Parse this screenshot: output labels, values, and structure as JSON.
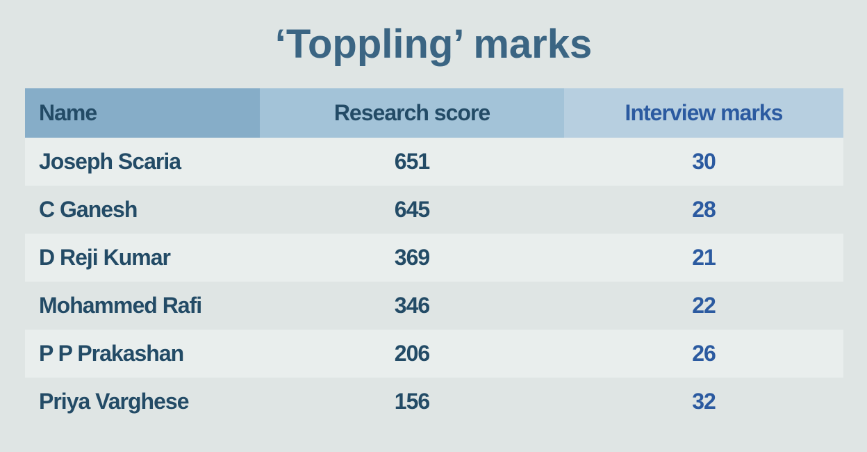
{
  "header": {
    "title": "‘Toppling’ marks"
  },
  "table": {
    "columns": [
      "Name",
      "Research score",
      "Interview marks"
    ],
    "rows": [
      [
        "Joseph Scaria",
        651,
        30
      ],
      [
        "C Ganesh",
        645,
        28
      ],
      [
        "D Reji Kumar",
        369,
        21
      ],
      [
        "Mohammed Rafi",
        346,
        22
      ],
      [
        "P P Prakashan",
        206,
        26
      ],
      [
        "Priya Varghese",
        156,
        32
      ]
    ]
  }
}
